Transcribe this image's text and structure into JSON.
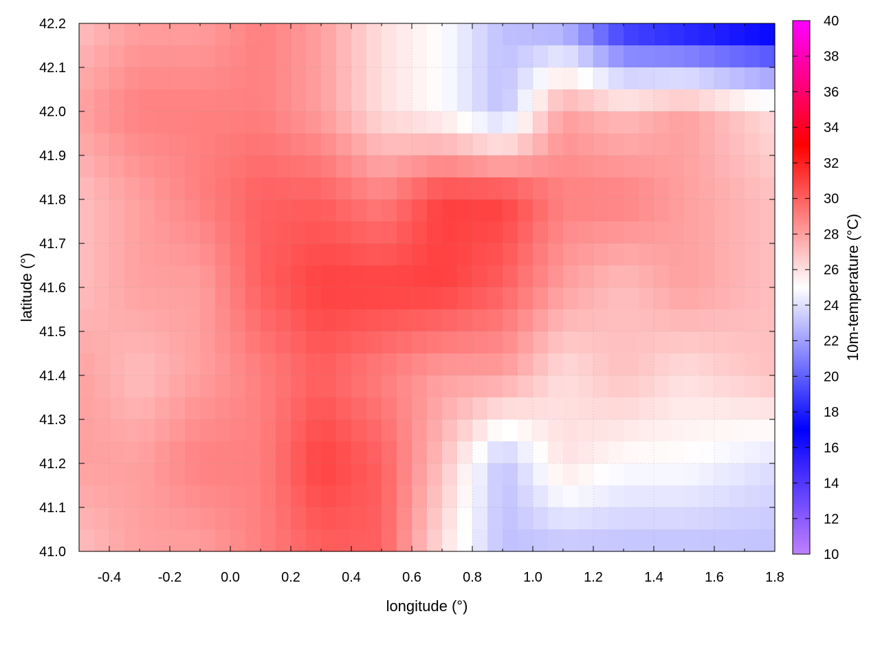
{
  "chart_data": {
    "type": "heatmap",
    "title": "",
    "xlabel": "longitude (°)",
    "ylabel": "latitude (°)",
    "xlim": [
      -0.5,
      1.8
    ],
    "ylim": [
      41.0,
      42.2
    ],
    "xticks": [
      "-0.4",
      "-0.2",
      "0.0",
      "0.2",
      "0.4",
      "0.6",
      "0.8",
      "1.0",
      "1.2",
      "1.4",
      "1.6",
      "1.8"
    ],
    "yticks": [
      "41.0",
      "41.1",
      "41.2",
      "41.3",
      "41.4",
      "41.5",
      "41.6",
      "41.7",
      "41.8",
      "41.9",
      "42.0",
      "42.1",
      "42.2"
    ],
    "grid": true,
    "colorbar": {
      "label": "10m-temperature (°C)",
      "range": [
        10,
        40
      ],
      "ticks": [
        "10",
        "12",
        "14",
        "16",
        "18",
        "20",
        "22",
        "24",
        "26",
        "28",
        "30",
        "32",
        "34",
        "36",
        "38",
        "40"
      ],
      "stops": [
        {
          "value": 10,
          "color": "#c080ff"
        },
        {
          "value": 17,
          "color": "#0000ff"
        },
        {
          "value": 25,
          "color": "#ffffff"
        },
        {
          "value": 33,
          "color": "#ff0000"
        },
        {
          "value": 40,
          "color": "#ff00ff"
        }
      ]
    },
    "grid_lon": [
      -0.5,
      -0.3,
      -0.1,
      0.1,
      0.3,
      0.5,
      0.7,
      0.9,
      1.1,
      1.3,
      1.5,
      1.8
    ],
    "grid_lat": [
      42.2,
      42.0,
      41.8,
      41.6,
      41.4,
      41.2,
      41.0
    ],
    "values": [
      [
        27,
        28,
        28,
        29,
        28,
        26,
        25,
        23,
        22,
        18,
        17,
        16
      ],
      [
        28,
        29,
        29,
        29,
        28,
        26,
        25,
        23,
        28,
        27,
        28,
        26
      ],
      [
        27,
        28,
        29,
        30,
        30,
        29,
        31,
        31,
        29,
        29,
        28,
        27
      ],
      [
        27,
        28,
        28,
        30,
        31,
        31,
        31,
        30,
        28,
        27,
        28,
        27
      ],
      [
        28,
        27,
        28,
        29,
        30,
        29,
        28,
        28,
        26,
        27,
        26,
        27
      ],
      [
        28,
        28,
        29,
        29,
        31,
        30,
        27,
        23,
        26,
        25,
        25,
        24
      ],
      [
        27,
        28,
        28,
        29,
        30,
        30,
        26,
        23,
        23,
        23,
        23,
        23
      ]
    ]
  }
}
